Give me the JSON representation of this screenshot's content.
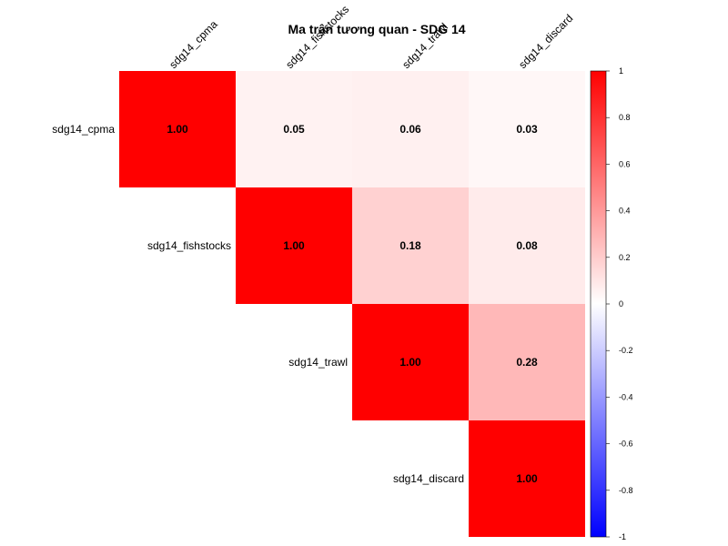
{
  "chart_data": {
    "type": "heatmap",
    "title": "Ma trận tương quan - SDG 14",
    "variables": [
      "sdg14_cpma",
      "sdg14_fishstocks",
      "sdg14_trawl",
      "sdg14_discard"
    ],
    "layout": "upper-triangle",
    "values": [
      [
        "1.00",
        "0.05",
        "0.06",
        "0.03"
      ],
      [
        null,
        "1.00",
        "0.18",
        "0.08"
      ],
      [
        null,
        null,
        "1.00",
        "0.28"
      ],
      [
        null,
        null,
        null,
        "1.00"
      ]
    ],
    "colorbar": {
      "range": [
        -1,
        1
      ],
      "ticks": [
        "1",
        "0.8",
        "0.6",
        "0.4",
        "0.2",
        "0",
        "-0.2",
        "-0.4",
        "-0.6",
        "-0.8",
        "-1"
      ],
      "low_color": "#0000ff",
      "mid_color": "#ffffff",
      "high_color": "#ff0000"
    }
  }
}
